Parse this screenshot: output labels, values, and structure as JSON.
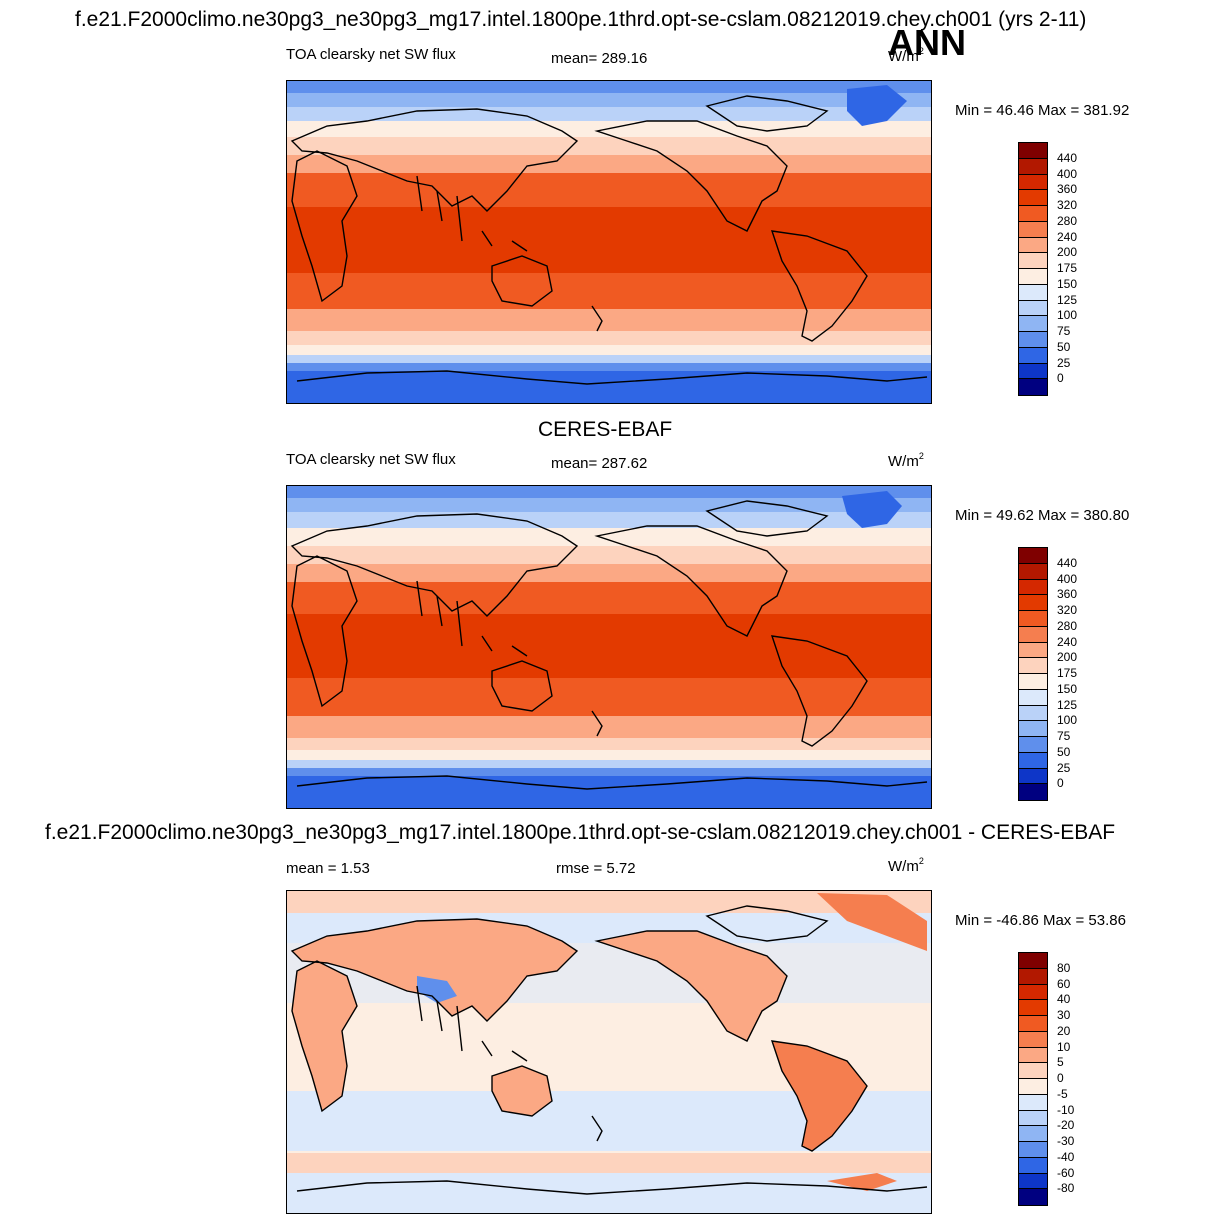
{
  "header": {
    "title": "f.e21.F2000climo.ne30pg3_ne30pg3_mg17.intel.1800pe.1thrd.opt-se-cslam.08212019.chey.ch001 (yrs 2-11)",
    "season": "ANN"
  },
  "panels": [
    {
      "id": "model",
      "variable": "TOA clearsky net SW flux",
      "stat": "mean= 289.16",
      "units": "W/m",
      "units_sup": "2",
      "minmax": "Min =  46.46 Max = 381.92"
    },
    {
      "id": "obs",
      "title": "CERES-EBAF",
      "variable": "TOA clearsky net SW flux",
      "stat": "mean= 287.62",
      "units": "W/m",
      "units_sup": "2",
      "minmax": "Min =  49.62 Max = 380.80"
    },
    {
      "id": "diff",
      "title": "f.e21.F2000climo.ne30pg3_ne30pg3_mg17.intel.1800pe.1thrd.opt-se-cslam.08212019.chey.ch001 - CERES-EBAF",
      "stat_mean": "mean =   1.53",
      "stat_rmse": "rmse =   5.72",
      "units": "W/m",
      "units_sup": "2",
      "minmax": "Min = -46.86 Max =  53.86"
    }
  ],
  "colorbars": {
    "abs": {
      "labels": [
        "440",
        "400",
        "360",
        "320",
        "280",
        "240",
        "200",
        "175",
        "150",
        "125",
        "100",
        "75",
        "50",
        "25",
        "0"
      ],
      "colors": [
        "#7f0000",
        "#b21800",
        "#d42800",
        "#e33a00",
        "#f05a22",
        "#f57e4f",
        "#fba884",
        "#fdd3be",
        "#fdeee2",
        "#dce9fb",
        "#bad2f8",
        "#8fb5f3",
        "#5f8fec",
        "#2f66e5",
        "#0e36c8",
        "#000080"
      ]
    },
    "diff": {
      "labels": [
        "80",
        "60",
        "40",
        "30",
        "20",
        "10",
        "5",
        "0",
        "-5",
        "-10",
        "-20",
        "-30",
        "-40",
        "-60",
        "-80"
      ],
      "colors": [
        "#7f0000",
        "#b21800",
        "#d42800",
        "#e33a00",
        "#f05a22",
        "#f57e4f",
        "#fba884",
        "#fdd3be",
        "#fdeee2",
        "#dce9fb",
        "#bad2f8",
        "#8fb5f3",
        "#5f8fec",
        "#2f66e5",
        "#0e36c8",
        "#000080"
      ]
    }
  }
}
